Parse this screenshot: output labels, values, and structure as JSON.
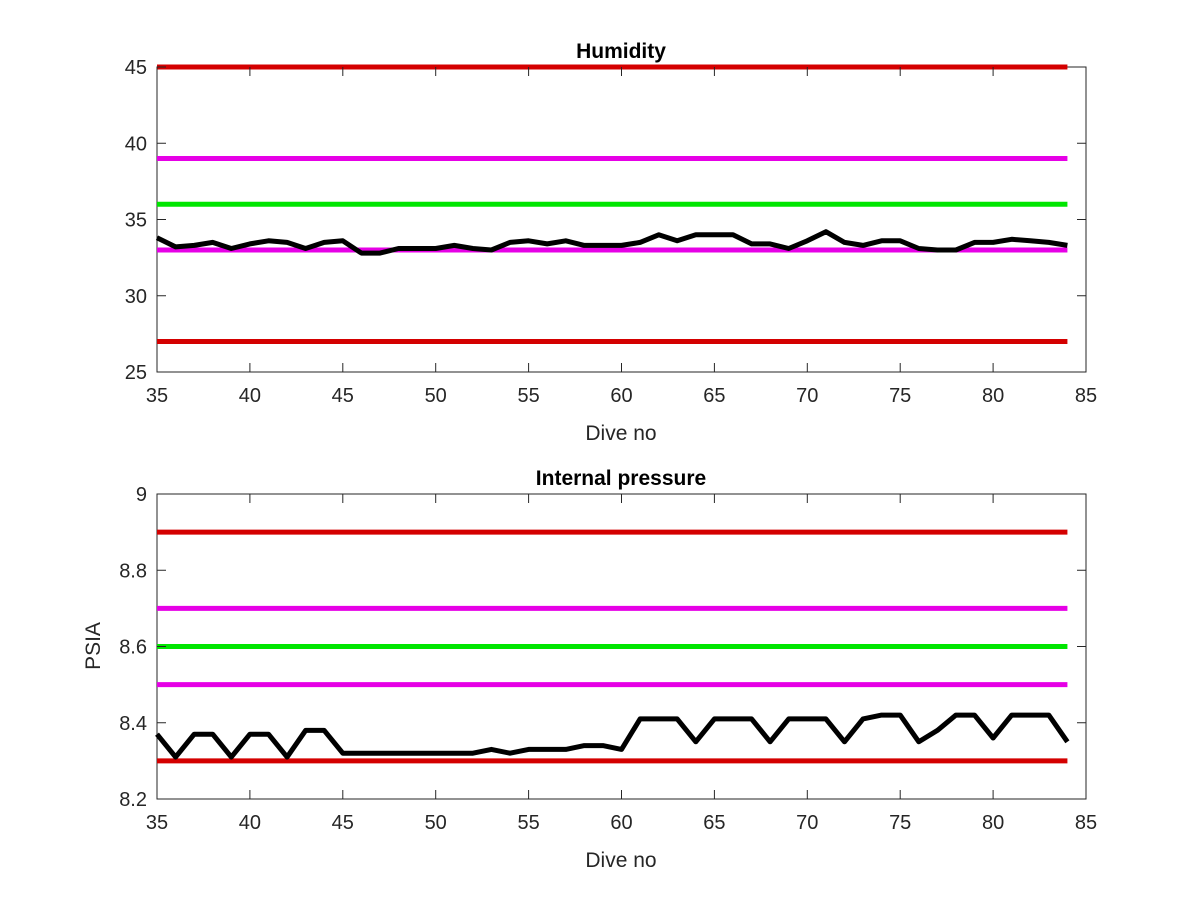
{
  "chart_data": [
    {
      "type": "line",
      "title": "Humidity",
      "xlabel": "Dive no",
      "ylabel": "",
      "xlim": [
        35,
        85
      ],
      "ylim": [
        25,
        45
      ],
      "xticks": [
        35,
        40,
        45,
        50,
        55,
        60,
        65,
        70,
        75,
        80,
        85
      ],
      "yticks": [
        25,
        30,
        35,
        40,
        45
      ],
      "grid": false,
      "reference_lines": [
        {
          "y": 45,
          "color": "#d40000"
        },
        {
          "y": 39,
          "color": "#e600e6"
        },
        {
          "y": 36,
          "color": "#00e600"
        },
        {
          "y": 33,
          "color": "#e600e6"
        },
        {
          "y": 27,
          "color": "#d40000"
        }
      ],
      "series": [
        {
          "color": "#000000",
          "x": [
            35,
            36,
            37,
            38,
            39,
            40,
            41,
            42,
            43,
            44,
            45,
            46,
            47,
            48,
            49,
            50,
            51,
            52,
            53,
            54,
            55,
            56,
            57,
            58,
            59,
            60,
            61,
            62,
            63,
            64,
            65,
            66,
            67,
            68,
            69,
            70,
            71,
            72,
            73,
            74,
            75,
            76,
            77,
            78,
            79,
            80,
            81,
            82,
            83,
            84
          ],
          "y": [
            33.8,
            33.2,
            33.3,
            33.5,
            33.1,
            33.4,
            33.6,
            33.5,
            33.1,
            33.5,
            33.6,
            32.8,
            32.8,
            33.1,
            33.1,
            33.1,
            33.3,
            33.1,
            33.0,
            33.5,
            33.6,
            33.4,
            33.6,
            33.3,
            33.3,
            33.3,
            33.5,
            34.0,
            33.6,
            34.0,
            34.0,
            34.0,
            33.4,
            33.4,
            33.1,
            33.6,
            34.2,
            33.5,
            33.3,
            33.6,
            33.6,
            33.1,
            33.0,
            33.0,
            33.5,
            33.5,
            33.7,
            33.6,
            33.5,
            33.3
          ]
        }
      ]
    },
    {
      "type": "line",
      "title": "Internal pressure",
      "xlabel": "Dive no",
      "ylabel": "PSIA",
      "xlim": [
        35,
        85
      ],
      "ylim": [
        8.2,
        9
      ],
      "xticks": [
        35,
        40,
        45,
        50,
        55,
        60,
        65,
        70,
        75,
        80,
        85
      ],
      "yticks": [
        8.2,
        8.4,
        8.6,
        8.8,
        9
      ],
      "ytick_labels": [
        "8.2",
        "8.4",
        "8.6",
        "8.8",
        "9"
      ],
      "grid": false,
      "reference_lines": [
        {
          "y": 8.9,
          "color": "#d40000"
        },
        {
          "y": 8.7,
          "color": "#e600e6"
        },
        {
          "y": 8.6,
          "color": "#00e600"
        },
        {
          "y": 8.5,
          "color": "#e600e6"
        },
        {
          "y": 8.3,
          "color": "#d40000"
        }
      ],
      "series": [
        {
          "color": "#000000",
          "x": [
            35,
            36,
            37,
            38,
            39,
            40,
            41,
            42,
            43,
            44,
            45,
            46,
            47,
            48,
            49,
            50,
            51,
            52,
            53,
            54,
            55,
            56,
            57,
            58,
            59,
            60,
            61,
            62,
            63,
            64,
            65,
            66,
            67,
            68,
            69,
            70,
            71,
            72,
            73,
            74,
            75,
            76,
            77,
            78,
            79,
            80,
            81,
            82,
            83,
            84
          ],
          "y": [
            8.37,
            8.31,
            8.37,
            8.37,
            8.31,
            8.37,
            8.37,
            8.31,
            8.38,
            8.38,
            8.32,
            8.32,
            8.32,
            8.32,
            8.32,
            8.32,
            8.32,
            8.32,
            8.33,
            8.32,
            8.33,
            8.33,
            8.33,
            8.34,
            8.34,
            8.33,
            8.41,
            8.41,
            8.41,
            8.35,
            8.41,
            8.41,
            8.41,
            8.35,
            8.41,
            8.41,
            8.41,
            8.35,
            8.41,
            8.42,
            8.42,
            8.35,
            8.38,
            8.42,
            8.42,
            8.36,
            8.42,
            8.42,
            8.42,
            8.35
          ]
        }
      ]
    }
  ]
}
